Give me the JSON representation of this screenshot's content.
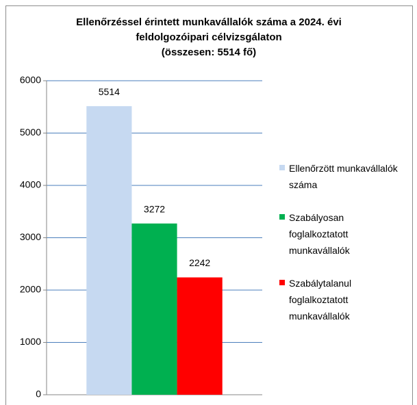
{
  "chart_data": {
    "type": "bar",
    "title": "Ellenőrzéssel érintett munkavállalók száma a 2024. évi feldolgozóipari célvizsgálaton",
    "subtitle": "(összesen: 5514 fő)",
    "categories": [
      null
    ],
    "series": [
      {
        "name": "Ellenőrzött munkavállalók száma",
        "color": "#c6d9f1",
        "values": [
          5514
        ]
      },
      {
        "name": "Szabályosan foglalkoztatott munkavállalók",
        "color": "#00b050",
        "values": [
          3272
        ]
      },
      {
        "name": "Szabálytalanul foglalkoztatott munkavállalók",
        "color": "#ff0000",
        "values": [
          2242
        ]
      }
    ],
    "ylim": [
      0,
      6000
    ],
    "yticks": [
      0,
      1000,
      2000,
      3000,
      4000,
      5000,
      6000
    ],
    "grid": true,
    "data_labels": true,
    "legend": "right"
  }
}
